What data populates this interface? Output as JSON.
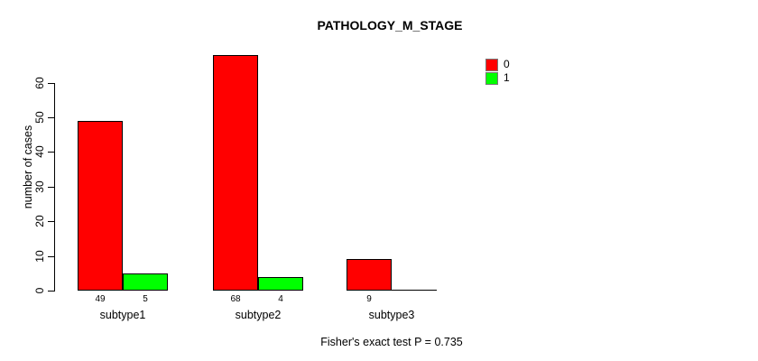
{
  "figure": {
    "title": "PATHOLOGY_M_STAGE",
    "caption": "Fisher's exact test P = 0.735"
  },
  "chart_data": {
    "type": "bar",
    "title": "PATHOLOGY_M_STAGE",
    "categories": [
      "subtype1",
      "subtype2",
      "subtype3"
    ],
    "series": [
      {
        "name": "0",
        "color": "#FF0000",
        "values": [
          49,
          68,
          9
        ]
      },
      {
        "name": "1",
        "color": "#00FF00",
        "values": [
          5,
          4,
          0
        ]
      }
    ],
    "bar_value_labels": [
      [
        "49",
        "5"
      ],
      [
        "68",
        "4"
      ],
      [
        "9",
        ""
      ]
    ],
    "xlabel": "",
    "ylabel": "number of cases",
    "yticks": [
      0,
      10,
      20,
      30,
      40,
      50,
      60
    ],
    "ylim": [
      0,
      60
    ],
    "grid": false,
    "legend_position": "top-right",
    "legend": [
      {
        "label": "0",
        "color": "#FF0000"
      },
      {
        "label": "1",
        "color": "#00FF00"
      }
    ],
    "annotation": "Fisher's exact test P = 0.735",
    "colors": {
      "background": "#FFFFFF",
      "axis": "#000000",
      "text": "#000000"
    }
  }
}
